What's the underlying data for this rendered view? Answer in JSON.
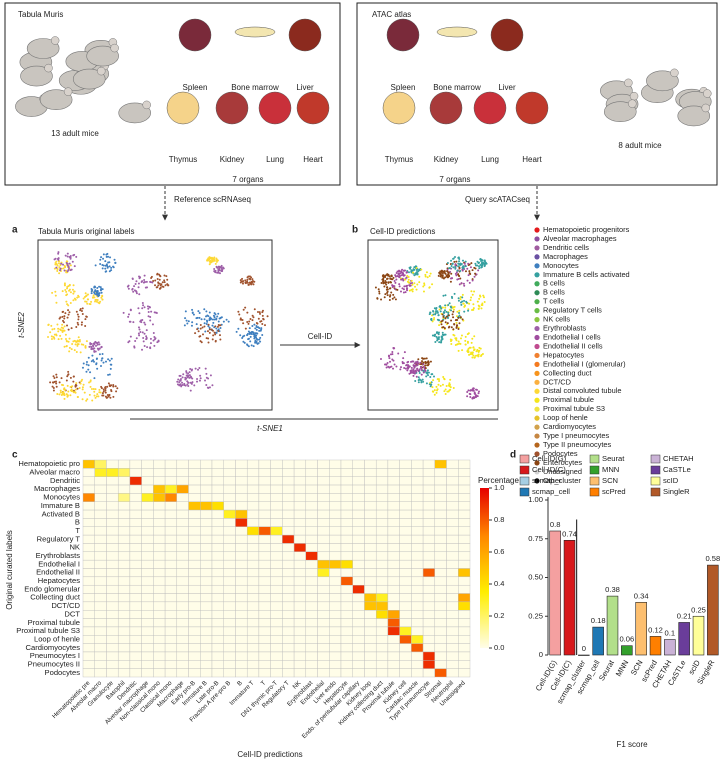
{
  "panels_top": [
    {
      "title": "Tabula Muris",
      "organs": [
        "Spleen",
        "Bone marrow",
        "Liver",
        "Thymus",
        "Kidney",
        "Lung",
        "Heart"
      ],
      "organ_count": "7 organs",
      "mice": "13 adult mice",
      "arrow_label": "Reference scRNAseq"
    },
    {
      "title": "ATAC atlas",
      "organs": [
        "Spleen",
        "Bone marrow",
        "Liver",
        "Thymus",
        "Kidney",
        "Lung",
        "Heart"
      ],
      "organ_count": "7 organs",
      "mice": "8 adult mice",
      "arrow_label": "Query scATACseq"
    }
  ],
  "panel_a": {
    "letter": "a",
    "title": "Tabula Muris original labels",
    "y_label": "t-SNE2"
  },
  "transfer_label": "Cell-ID",
  "panel_b": {
    "letter": "b",
    "title": "Cell-ID predictions"
  },
  "x_label": "t-SNE1",
  "legend": [
    {
      "label": "Hematopoietic progenitors",
      "color": "#e41a1c"
    },
    {
      "label": "Alveolar macrophages",
      "color": "#8e4fa0"
    },
    {
      "label": "Dendritic cells",
      "color": "#a05ca0"
    },
    {
      "label": "Macrophages",
      "color": "#6a51a3"
    },
    {
      "label": "Monocytes",
      "color": "#3f7fbf"
    },
    {
      "label": "Immature B cells activated",
      "color": "#35a0a0"
    },
    {
      "label": "B cells",
      "color": "#41ab5d"
    },
    {
      "label": "B cells",
      "color": "#2e8b57"
    },
    {
      "label": "T cells",
      "color": "#4daf4a"
    },
    {
      "label": "Regulatory T cells",
      "color": "#6abd45"
    },
    {
      "label": "NK cells",
      "color": "#8dc63f"
    },
    {
      "label": "Erythroblasts",
      "color": "#9e5fa8"
    },
    {
      "label": "Endothelial I cells",
      "color": "#a04d9f"
    },
    {
      "label": "Endothelial II cells",
      "color": "#c04b8f"
    },
    {
      "label": "Hepatocytes",
      "color": "#f08030"
    },
    {
      "label": "Endothelial I (glomerular)",
      "color": "#f47a20"
    },
    {
      "label": "Collecting duct",
      "color": "#f7941d"
    },
    {
      "label": "DCT/CD",
      "color": "#fbb040"
    },
    {
      "label": "Distal convoluted tubule",
      "color": "#fdd835"
    },
    {
      "label": "Proximal tubule",
      "color": "#f5e61a"
    },
    {
      "label": "Proximal tubule S3",
      "color": "#f0e442"
    },
    {
      "label": "Loop of henle",
      "color": "#e6c229"
    },
    {
      "label": "Cardiomyocytes",
      "color": "#d2a24c"
    },
    {
      "label": "Type I pneumocytes",
      "color": "#c68642"
    },
    {
      "label": "Type II pneumocytes",
      "color": "#b5651d"
    },
    {
      "label": "Podocytes",
      "color": "#a0522d"
    },
    {
      "label": "Enterocytes",
      "color": "#8b4513"
    },
    {
      "label": "Unassigned",
      "color": "#d3d3d3"
    },
    {
      "label": "Other",
      "color": "#000000"
    }
  ],
  "panel_c": {
    "letter": "c"
  },
  "panel_d": {
    "letter": "d"
  },
  "chart_data": [
    {
      "type": "heatmap",
      "x_label": "Cell-ID predictions",
      "y_label": "Original curated labels",
      "colorbar_label": "Percentage",
      "rows": [
        "Hematopoietic pro",
        "Alveolar macro",
        "Dendritic",
        "Macrophages",
        "Monocytes",
        "Immature B",
        "Activated B",
        "B",
        "T",
        "Regulatory T",
        "NK",
        "Erythroblasts",
        "Endothelial I",
        "Endothelial II",
        "Hepatocytes",
        "Endo glomerular",
        "Collecting duct",
        "DCT/CD",
        "DCT",
        "Proximal tubule",
        "Proximal tubule S3",
        "Loop of henle",
        "Cardiomyocytes",
        "Pneumocytes I",
        "Pneumocytes II",
        "Podocytes"
      ],
      "columns": [
        "Hematopoietic pre",
        "Alveolar macro",
        "Granulocyte",
        "Basophil",
        "Dendritic",
        "Alveolar macrophage",
        "Non-classical mono",
        "Classical mono",
        "Macrophage",
        "Early pro-B",
        "Immature B",
        "Late pro-B",
        "Fraction A pre-pro B",
        "B",
        "Immature T",
        "T",
        "DN1 thymic pro-T",
        "Regulatory T",
        "NK",
        "Erythroblast",
        "Endothelial",
        "Liver endo",
        "Hepatocyte",
        "Endo. of peritubular capillary",
        "Kidney loop",
        "Kidney collecting duct",
        "Proximal tubule",
        "Kidney cell",
        "Cardiac muscle",
        "Type II pneumocyte",
        "Stromal",
        "Neutrophil",
        "Unassigned"
      ],
      "values": [
        [
          0.5,
          0.2,
          0,
          0,
          0,
          0,
          0,
          0,
          0,
          0,
          0,
          0,
          0,
          0,
          0,
          0,
          0,
          0,
          0,
          0,
          0,
          0,
          0,
          0,
          0,
          0,
          0,
          0,
          0,
          0,
          0.5,
          0,
          0
        ],
        [
          0,
          0.3,
          0.3,
          0.2,
          0,
          0,
          0,
          0,
          0,
          0,
          0,
          0,
          0,
          0,
          0,
          0,
          0,
          0,
          0,
          0,
          0,
          0,
          0,
          0,
          0,
          0,
          0,
          0,
          0,
          0,
          0,
          0,
          0
        ],
        [
          0,
          0,
          0,
          0,
          0.9,
          0,
          0,
          0,
          0,
          0,
          0,
          0,
          0,
          0,
          0,
          0,
          0,
          0,
          0,
          0,
          0,
          0,
          0,
          0,
          0,
          0,
          0,
          0,
          0,
          0,
          0,
          0,
          0
        ],
        [
          0,
          0,
          0,
          0,
          0,
          0,
          0.5,
          0.3,
          0.6,
          0,
          0,
          0,
          0,
          0,
          0,
          0,
          0,
          0,
          0,
          0,
          0,
          0,
          0,
          0,
          0,
          0,
          0,
          0,
          0,
          0,
          0,
          0,
          0
        ],
        [
          0.7,
          0,
          0,
          0.15,
          0,
          0.3,
          0.5,
          0.7,
          0,
          0,
          0,
          0,
          0,
          0,
          0,
          0,
          0,
          0,
          0,
          0,
          0,
          0,
          0,
          0,
          0,
          0,
          0,
          0,
          0,
          0,
          0,
          0,
          0
        ],
        [
          0,
          0,
          0,
          0,
          0,
          0,
          0,
          0,
          0,
          0.5,
          0.5,
          0.4,
          0,
          0,
          0,
          0,
          0,
          0,
          0,
          0,
          0,
          0,
          0,
          0,
          0,
          0,
          0,
          0,
          0,
          0,
          0,
          0,
          0
        ],
        [
          0,
          0,
          0,
          0,
          0,
          0,
          0,
          0,
          0,
          0,
          0,
          0,
          0.3,
          0.5,
          0,
          0,
          0,
          0,
          0,
          0,
          0,
          0,
          0,
          0,
          0,
          0,
          0,
          0,
          0,
          0,
          0,
          0,
          0
        ],
        [
          0,
          0,
          0,
          0,
          0,
          0,
          0,
          0,
          0,
          0,
          0,
          0,
          0,
          0.9,
          0,
          0,
          0,
          0,
          0,
          0,
          0,
          0,
          0,
          0,
          0,
          0,
          0,
          0,
          0,
          0,
          0,
          0,
          0
        ],
        [
          0,
          0,
          0,
          0,
          0,
          0,
          0,
          0,
          0,
          0,
          0,
          0,
          0,
          0,
          0.4,
          0.8,
          0.3,
          0,
          0,
          0,
          0,
          0,
          0,
          0,
          0,
          0,
          0,
          0,
          0,
          0,
          0,
          0,
          0
        ],
        [
          0,
          0,
          0,
          0,
          0,
          0,
          0,
          0,
          0,
          0,
          0,
          0,
          0,
          0,
          0,
          0,
          0,
          0.9,
          0,
          0,
          0,
          0,
          0,
          0,
          0,
          0,
          0,
          0,
          0,
          0,
          0,
          0,
          0
        ],
        [
          0,
          0,
          0,
          0,
          0,
          0,
          0,
          0,
          0,
          0,
          0,
          0,
          0,
          0,
          0,
          0,
          0,
          0,
          0.9,
          0,
          0,
          0,
          0,
          0,
          0,
          0,
          0,
          0,
          0,
          0,
          0,
          0,
          0
        ],
        [
          0,
          0,
          0,
          0,
          0,
          0,
          0,
          0,
          0,
          0,
          0,
          0,
          0,
          0,
          0,
          0,
          0,
          0,
          0,
          0.9,
          0,
          0,
          0,
          0,
          0,
          0,
          0,
          0,
          0,
          0,
          0,
          0,
          0
        ],
        [
          0,
          0,
          0,
          0,
          0,
          0,
          0,
          0,
          0,
          0,
          0,
          0,
          0,
          0,
          0,
          0,
          0,
          0,
          0,
          0,
          0.5,
          0.5,
          0.4,
          0,
          0,
          0,
          0,
          0,
          0,
          0,
          0,
          0,
          0
        ],
        [
          0,
          0,
          0,
          0,
          0,
          0,
          0,
          0,
          0,
          0,
          0,
          0,
          0,
          0,
          0,
          0,
          0,
          0,
          0,
          0,
          0.3,
          0,
          0,
          0,
          0,
          0,
          0,
          0,
          0,
          0.8,
          0,
          0,
          0.5
        ],
        [
          0,
          0,
          0,
          0,
          0,
          0,
          0,
          0,
          0,
          0,
          0,
          0,
          0,
          0,
          0,
          0,
          0,
          0,
          0,
          0,
          0,
          0,
          0.8,
          0,
          0,
          0,
          0,
          0,
          0,
          0,
          0,
          0,
          0
        ],
        [
          0,
          0,
          0,
          0,
          0,
          0,
          0,
          0,
          0,
          0,
          0,
          0,
          0,
          0,
          0,
          0,
          0,
          0,
          0,
          0,
          0,
          0,
          0,
          0.9,
          0,
          0,
          0,
          0,
          0,
          0,
          0,
          0,
          0
        ],
        [
          0,
          0,
          0,
          0,
          0,
          0,
          0,
          0,
          0,
          0,
          0,
          0,
          0,
          0,
          0,
          0,
          0,
          0,
          0,
          0,
          0,
          0,
          0,
          0,
          0.5,
          0.3,
          0,
          0,
          0,
          0,
          0,
          0,
          0.6
        ],
        [
          0,
          0,
          0,
          0,
          0,
          0,
          0,
          0,
          0,
          0,
          0,
          0,
          0,
          0,
          0,
          0,
          0,
          0,
          0,
          0,
          0,
          0,
          0,
          0,
          0.5,
          0.5,
          0,
          0,
          0,
          0,
          0,
          0,
          0.4
        ],
        [
          0,
          0,
          0,
          0,
          0,
          0,
          0,
          0,
          0,
          0,
          0,
          0,
          0,
          0,
          0,
          0,
          0,
          0,
          0,
          0,
          0,
          0,
          0,
          0,
          0,
          0.4,
          0.6,
          0,
          0,
          0,
          0,
          0,
          0
        ],
        [
          0,
          0,
          0,
          0,
          0,
          0,
          0,
          0,
          0,
          0,
          0,
          0,
          0,
          0,
          0,
          0,
          0,
          0,
          0,
          0,
          0,
          0,
          0,
          0,
          0,
          0,
          0.8,
          0,
          0,
          0,
          0,
          0,
          0
        ],
        [
          0,
          0,
          0,
          0,
          0,
          0,
          0,
          0,
          0,
          0,
          0,
          0,
          0,
          0,
          0,
          0,
          0,
          0,
          0,
          0,
          0,
          0,
          0,
          0,
          0,
          0,
          0.9,
          0.3,
          0,
          0,
          0,
          0,
          0
        ],
        [
          0,
          0,
          0,
          0,
          0,
          0,
          0,
          0,
          0,
          0,
          0,
          0,
          0,
          0,
          0,
          0,
          0,
          0,
          0,
          0,
          0,
          0,
          0,
          0,
          0,
          0,
          0,
          0.8,
          0.3,
          0,
          0,
          0,
          0
        ],
        [
          0,
          0,
          0,
          0,
          0,
          0,
          0,
          0,
          0,
          0,
          0,
          0,
          0,
          0,
          0,
          0,
          0,
          0,
          0,
          0,
          0,
          0,
          0,
          0,
          0,
          0,
          0,
          0,
          0.8,
          0,
          0,
          0,
          0
        ],
        [
          0,
          0,
          0,
          0,
          0,
          0,
          0,
          0,
          0,
          0,
          0,
          0,
          0,
          0,
          0,
          0,
          0,
          0,
          0,
          0,
          0,
          0,
          0,
          0,
          0,
          0,
          0,
          0,
          0,
          0.9,
          0,
          0,
          0
        ],
        [
          0,
          0,
          0,
          0,
          0,
          0,
          0,
          0,
          0,
          0,
          0,
          0,
          0,
          0,
          0,
          0,
          0,
          0,
          0,
          0,
          0,
          0,
          0,
          0,
          0,
          0,
          0,
          0,
          0,
          0.9,
          0,
          0,
          0
        ],
        [
          0,
          0,
          0,
          0,
          0,
          0,
          0,
          0,
          0,
          0,
          0,
          0,
          0,
          0,
          0,
          0,
          0,
          0,
          0,
          0,
          0,
          0,
          0,
          0,
          0,
          0,
          0,
          0,
          0,
          0,
          0.8,
          0,
          0
        ]
      ],
      "clim": [
        0,
        1
      ],
      "cticks": [
        {
          "value": 0,
          "label": "0.0"
        },
        0.2,
        0.4,
        0.6,
        0.8,
        {
          "value": 1,
          "label": "1.0"
        }
      ]
    },
    {
      "type": "bar",
      "x_label": "F1 score",
      "categories": [
        "Cell-ID(G)",
        "Cell-ID(C)",
        "scmap_cluster",
        "scmap_cell",
        "Seurat",
        "MNN",
        "SCN",
        "scPred",
        "CHETAH",
        "CaSTLe",
        "scID",
        "SingleR"
      ],
      "values": [
        0.8,
        0.74,
        0,
        0.18,
        0.38,
        0.06,
        0.34,
        0.12,
        0.1,
        0.21,
        0.25,
        0.58
      ],
      "colors": [
        "#f4a0a0",
        "#d7191c",
        "#a6cee3",
        "#1f78b4",
        "#b2df8a",
        "#33a02c",
        "#fdbf6f",
        "#ff7f00",
        "#cab2d6",
        "#6a3d9a",
        "#ffff99",
        "#b15928"
      ],
      "ylim": [
        0,
        1.1
      ],
      "yticks": [
        0,
        0.25,
        {
          "value": 0.5,
          "label": "0.50"
        },
        0.75,
        {
          "value": 1,
          "label": "1.00"
        }
      ]
    }
  ]
}
